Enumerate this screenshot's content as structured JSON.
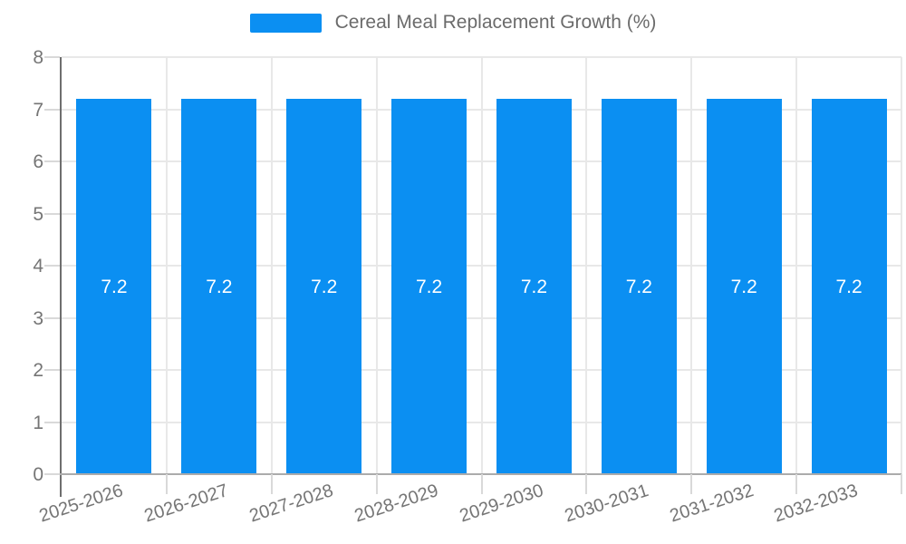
{
  "legend": {
    "label": "Cereal Meal Replacement Growth (%)"
  },
  "chart_data": {
    "type": "bar",
    "title": "Cereal Meal Replacement Growth (%)",
    "categories": [
      "2025-2026",
      "2026-2027",
      "2027-2028",
      "2028-2029",
      "2029-2030",
      "2030-2031",
      "2031-2032",
      "2032-2033"
    ],
    "values": [
      7.2,
      7.2,
      7.2,
      7.2,
      7.2,
      7.2,
      7.2,
      7.2
    ],
    "bar_value_labels": [
      "7.2",
      "7.2",
      "7.2",
      "7.2",
      "7.2",
      "7.2",
      "7.2",
      "7.2"
    ],
    "xlabel": "",
    "ylabel": "",
    "ylim": [
      0,
      8
    ],
    "y_ticks": [
      0,
      1,
      2,
      3,
      4,
      5,
      6,
      7,
      8
    ],
    "grid": true,
    "legend_position": "top",
    "x_label_rotation_deg": -18
  },
  "colors": {
    "bar": "#0b8ff2",
    "value_label": "#ffffff",
    "axis_text": "#757575",
    "legend_text": "#6b6b6b",
    "gridline": "#e8e8e8",
    "tick": "#d9d9d9",
    "y_axis_line": "#6e6e6e",
    "x_axis_line": "#ababab",
    "background": "#ffffff"
  }
}
